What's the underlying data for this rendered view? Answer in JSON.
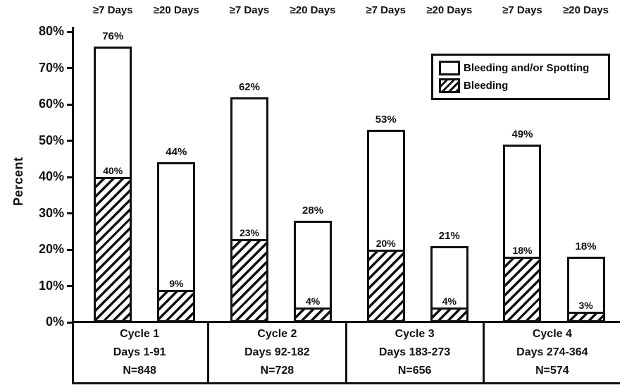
{
  "chart_data": {
    "type": "bar",
    "title": "",
    "ylabel": "Percent",
    "ylim": [
      0,
      80
    ],
    "grid": false,
    "legend_position": "top-right",
    "yticks": [
      "0%",
      "10%",
      "20%",
      "30%",
      "40%",
      "50%",
      "60%",
      "70%",
      "80%"
    ],
    "legend": [
      {
        "name": "Bleeding and/or Spotting",
        "style": "white"
      },
      {
        "name": "Bleeding",
        "style": "hatched"
      }
    ],
    "series_note": "Each bar is stacked: hatched lower segment = Bleeding, full outlined bar = Bleeding and/or Spotting",
    "groups": [
      {
        "category_lines": [
          "Cycle 1",
          "Days 1-91",
          "N=848"
        ],
        "bars": [
          {
            "header": "≥7 Days",
            "total": 76,
            "total_label": "76%",
            "bleeding": 40,
            "bleeding_label": "40%"
          },
          {
            "header": "≥20 Days",
            "total": 44,
            "total_label": "44%",
            "bleeding": 9,
            "bleeding_label": "9%"
          }
        ]
      },
      {
        "category_lines": [
          "Cycle 2",
          "Days 92-182",
          "N=728"
        ],
        "bars": [
          {
            "header": "≥7 Days",
            "total": 62,
            "total_label": "62%",
            "bleeding": 23,
            "bleeding_label": "23%"
          },
          {
            "header": "≥20 Days",
            "total": 28,
            "total_label": "28%",
            "bleeding": 4,
            "bleeding_label": "4%"
          }
        ]
      },
      {
        "category_lines": [
          "Cycle 3",
          "Days 183-273",
          "N=656"
        ],
        "bars": [
          {
            "header": "≥7 Days",
            "total": 53,
            "total_label": "53%",
            "bleeding": 20,
            "bleeding_label": "20%"
          },
          {
            "header": "≥20 Days",
            "total": 21,
            "total_label": "21%",
            "bleeding": 4,
            "bleeding_label": "4%"
          }
        ]
      },
      {
        "category_lines": [
          "Cycle 4",
          "Days 274-364",
          "N=574"
        ],
        "bars": [
          {
            "header": "≥7 Days",
            "total": 49,
            "total_label": "49%",
            "bleeding": 18,
            "bleeding_label": "18%"
          },
          {
            "header": "≥20 Days",
            "total": 18,
            "total_label": "18%",
            "bleeding": 3,
            "bleeding_label": "3%"
          }
        ]
      }
    ]
  }
}
